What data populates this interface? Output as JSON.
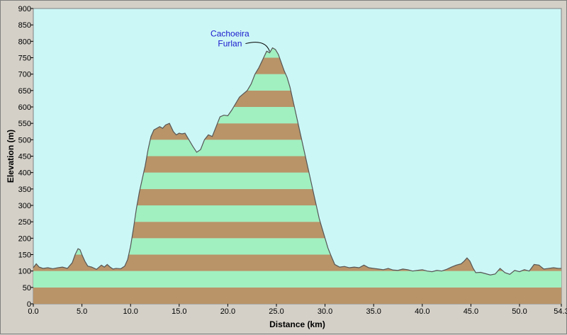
{
  "chart_data": {
    "type": "area",
    "xlabel": "Distance   (km)",
    "ylabel": "Elevation (m)",
    "xlim": [
      0,
      54.3
    ],
    "ylim": [
      0,
      900
    ],
    "xticks": [
      "0.0",
      "5.0",
      "10.0",
      "15.0",
      "20.0",
      "25.0",
      "30.0",
      "35.0",
      "40.0",
      "45.0",
      "50.0",
      "54.3"
    ],
    "xtick_values": [
      0,
      5,
      10,
      15,
      20,
      25,
      30,
      35,
      40,
      45,
      50,
      54.3
    ],
    "yticks": [
      "0",
      "50",
      "100",
      "150",
      "200",
      "250",
      "300",
      "350",
      "400",
      "450",
      "500",
      "550",
      "600",
      "650",
      "700",
      "750",
      "800",
      "850",
      "900"
    ],
    "ytick_values": [
      0,
      50,
      100,
      150,
      200,
      250,
      300,
      350,
      400,
      450,
      500,
      550,
      600,
      650,
      700,
      750,
      800,
      850,
      900
    ],
    "band_height": 50,
    "band_colors": [
      "#b89468",
      "#a0f0c0"
    ],
    "plot_background": "#ccf7f7",
    "line_color": "#555555",
    "grid": false,
    "annotation": {
      "lines": [
        "Cachoeira",
        "Furlan"
      ],
      "x": 24.3,
      "y": 765
    },
    "x": [
      0.0,
      0.3,
      0.6,
      1.0,
      1.5,
      2.0,
      2.5,
      3.0,
      3.5,
      4.0,
      4.3,
      4.6,
      4.8,
      5.0,
      5.3,
      5.6,
      6.0,
      6.5,
      7.0,
      7.3,
      7.6,
      7.9,
      8.2,
      8.5,
      9.0,
      9.4,
      9.7,
      10.0,
      10.3,
      10.6,
      10.9,
      11.2,
      11.5,
      11.8,
      12.1,
      12.4,
      12.7,
      13.0,
      13.3,
      13.6,
      14.0,
      14.4,
      14.7,
      15.0,
      15.3,
      15.6,
      16.0,
      16.4,
      16.8,
      17.2,
      17.6,
      18.0,
      18.4,
      18.8,
      19.2,
      19.6,
      20.0,
      20.4,
      20.8,
      21.2,
      21.6,
      22.0,
      22.4,
      22.8,
      23.2,
      23.6,
      24.0,
      24.3,
      24.6,
      24.9,
      25.2,
      25.5,
      25.8,
      26.1,
      26.4,
      26.7,
      27.0,
      27.3,
      27.6,
      27.9,
      28.2,
      28.5,
      28.8,
      29.1,
      29.4,
      29.7,
      30.0,
      30.3,
      30.6,
      31.0,
      31.5,
      32.0,
      32.5,
      33.0,
      33.5,
      34.0,
      34.5,
      35.0,
      35.5,
      36.0,
      36.5,
      37.0,
      37.5,
      38.0,
      38.5,
      39.0,
      39.5,
      40.0,
      40.5,
      41.0,
      41.5,
      42.0,
      42.5,
      43.0,
      43.5,
      44.0,
      44.3,
      44.6,
      44.9,
      45.2,
      45.5,
      46.0,
      46.5,
      47.0,
      47.5,
      48.0,
      48.5,
      49.0,
      49.5,
      50.0,
      50.5,
      51.0,
      51.5,
      52.0,
      52.5,
      53.0,
      53.5,
      54.0,
      54.3
    ],
    "y": [
      110,
      122,
      112,
      108,
      110,
      107,
      110,
      112,
      108,
      125,
      150,
      168,
      165,
      150,
      130,
      115,
      112,
      105,
      118,
      112,
      120,
      112,
      106,
      108,
      107,
      115,
      135,
      175,
      230,
      290,
      340,
      380,
      420,
      470,
      510,
      530,
      535,
      540,
      535,
      545,
      550,
      525,
      515,
      520,
      518,
      520,
      500,
      480,
      462,
      470,
      500,
      515,
      510,
      540,
      570,
      575,
      573,
      590,
      610,
      630,
      640,
      650,
      670,
      700,
      720,
      745,
      770,
      765,
      780,
      775,
      760,
      735,
      710,
      690,
      660,
      620,
      580,
      540,
      500,
      460,
      420,
      380,
      340,
      300,
      260,
      230,
      200,
      170,
      148,
      120,
      112,
      114,
      110,
      112,
      110,
      118,
      110,
      108,
      106,
      104,
      108,
      103,
      102,
      106,
      104,
      100,
      102,
      104,
      100,
      98,
      102,
      100,
      105,
      112,
      118,
      122,
      130,
      140,
      130,
      110,
      95,
      96,
      92,
      88,
      91,
      108,
      95,
      90,
      102,
      98,
      104,
      100,
      120,
      118,
      106,
      108,
      110,
      108,
      108
    ]
  }
}
